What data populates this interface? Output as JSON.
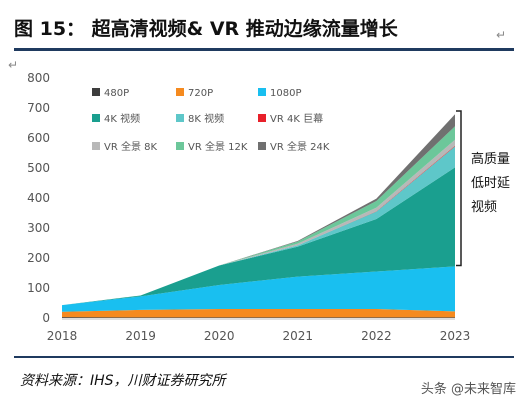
{
  "header": {
    "title": "图 15：  超高清视频& VR 推动边缘流量增长"
  },
  "source": "资料来源：IHS，川财证券研究所",
  "watermark": "头条 @未来智库",
  "chart_data": {
    "type": "area",
    "stacked": true,
    "x": [
      "2018",
      "2019",
      "2020",
      "2021",
      "2022",
      "2023"
    ],
    "ylim": [
      0,
      800
    ],
    "yticks": [
      "0",
      "100",
      "200",
      "300",
      "400",
      "500",
      "600",
      "700",
      "800"
    ],
    "grid": false,
    "legend_position": "top-left",
    "series": [
      {
        "name": "480P",
        "color": "#3d3d3d",
        "values": [
          3,
          2,
          2,
          2,
          2,
          2
        ]
      },
      {
        "name": "720P",
        "color": "#f58a1f",
        "values": [
          18,
          25,
          28,
          28,
          28,
          20
        ]
      },
      {
        "name": "1080P",
        "color": "#19bff0",
        "values": [
          22,
          45,
          80,
          108,
          125,
          150
        ]
      },
      {
        "name": "4K 视频",
        "color": "#1a9f8f",
        "values": [
          0,
          3,
          65,
          100,
          175,
          330
        ]
      },
      {
        "name": "8K 视频",
        "color": "#5ec7c9",
        "values": [
          0,
          0,
          0,
          4,
          25,
          70
        ]
      },
      {
        "name": "VR 4K 巨幕",
        "color": "#e8202a",
        "values": [
          0,
          0,
          0,
          0,
          1,
          2
        ]
      },
      {
        "name": "VR 全景 8K",
        "color": "#b8b8b8",
        "values": [
          0,
          0,
          0,
          6,
          12,
          20
        ]
      },
      {
        "name": "VR 全景 12K",
        "color": "#6cc79a",
        "values": [
          0,
          0,
          0,
          7,
          22,
          45
        ]
      },
      {
        "name": "VR 全景 24K",
        "color": "#707070",
        "values": [
          0,
          0,
          0,
          2,
          8,
          40
        ]
      }
    ],
    "annotation": {
      "text": [
        "高质量",
        "低时延",
        "视频"
      ],
      "bracket_from": 175,
      "bracket_to": 690
    }
  }
}
